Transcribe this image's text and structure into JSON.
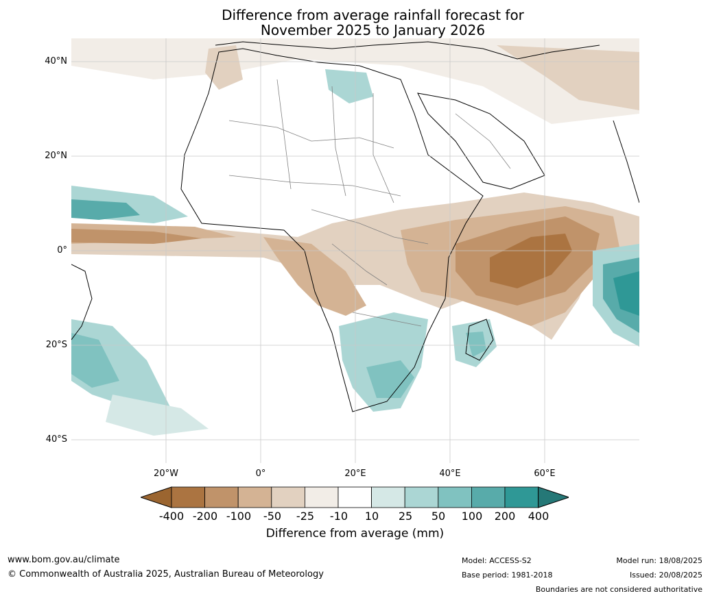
{
  "title": {
    "line1": "Difference from average rainfall forecast for",
    "line2": "November 2025 to January 2026"
  },
  "axes": {
    "lat_labels": [
      "40°N",
      "20°N",
      "0°",
      "20°S",
      "40°S"
    ],
    "lon_labels": [
      "20°W",
      "0°",
      "20°E",
      "40°E",
      "60°E"
    ]
  },
  "colorbar": {
    "title": "Difference from average (mm)",
    "tick_labels": [
      "-400",
      "-200",
      "-100",
      "-50",
      "-25",
      "-10",
      "10",
      "25",
      "50",
      "100",
      "200",
      "400"
    ],
    "colors": [
      "#9b6530",
      "#ab7441",
      "#c0936a",
      "#d4b394",
      "#e2d1c0",
      "#f2ede7",
      "#ffffff",
      "#d5e8e6",
      "#abd6d4",
      "#80c2c0",
      "#58abaa",
      "#2f9896",
      "#257877"
    ]
  },
  "footer": {
    "website": "www.bom.gov.au/climate",
    "copyright": "© Commonwealth of Australia 2025, Australian Bureau of Meteorology",
    "model": "Model: ACCESS-S2",
    "base_period": "Base period: 1981-2018",
    "model_run": "Model run: 18/08/2025",
    "issued": "Issued: 20/08/2025",
    "disclaimer": "Boundaries are not considered authoritative"
  }
}
